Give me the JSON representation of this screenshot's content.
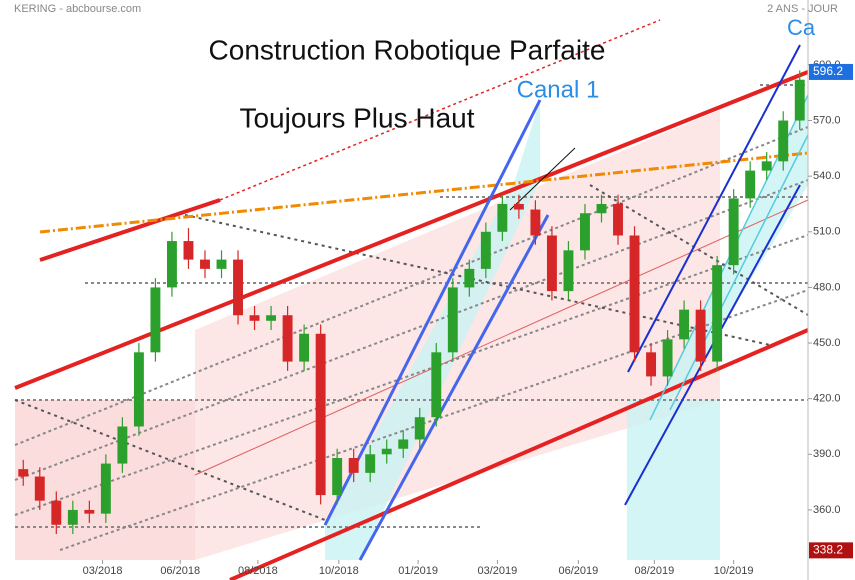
{
  "chart_data": {
    "type": "candlestick",
    "header_left": "KERING - abcbourse.com",
    "header_right": "2 ANS - JOUR",
    "annotations": [
      "Construction Robotique Parfaite",
      "Toujours Plus  Haut",
      "Canal 1",
      "Ca"
    ],
    "up_color": "#2ca02c",
    "down_color": "#d62728",
    "xlim": [
      0,
      48
    ],
    "xticks": [
      {
        "value": 5.3,
        "label": "03/2018"
      },
      {
        "value": 10.0,
        "label": "06/2018"
      },
      {
        "value": 14.7,
        "label": "08/2018"
      },
      {
        "value": 19.6,
        "label": "10/2018"
      },
      {
        "value": 24.4,
        "label": "01/2019"
      },
      {
        "value": 29.2,
        "label": "03/2019"
      },
      {
        "value": 34.1,
        "label": "06/2019"
      },
      {
        "value": 38.7,
        "label": "08/2019"
      },
      {
        "value": 43.5,
        "label": "10/2019"
      }
    ],
    "ylim": [
      333,
      635
    ],
    "yticks": [
      {
        "value": 360,
        "label": "360.0"
      },
      {
        "value": 390,
        "label": "390.0"
      },
      {
        "value": 420,
        "label": "420.0"
      },
      {
        "value": 450,
        "label": "450.0"
      },
      {
        "value": 480,
        "label": "480.0"
      },
      {
        "value": 510,
        "label": "510.0"
      },
      {
        "value": 540,
        "label": "540.0"
      },
      {
        "value": 570,
        "label": "570.0"
      },
      {
        "value": 600,
        "label": "600.0"
      }
    ],
    "price_tags": [
      {
        "value": 596.2,
        "label": "596.2",
        "color": "#1e6fe0"
      },
      {
        "value": 338.2,
        "label": "338.2",
        "color": "#b01010"
      }
    ],
    "open": [
      382,
      378,
      365,
      352,
      360,
      358,
      385,
      405,
      445,
      480,
      505,
      495,
      490,
      495,
      465,
      462,
      465,
      440,
      455,
      368,
      388,
      380,
      390,
      393,
      398,
      410,
      445,
      480,
      490,
      510,
      525,
      522,
      508,
      478,
      500,
      520,
      525,
      508,
      445,
      432,
      452,
      468,
      440,
      492,
      528,
      543,
      548,
      570
    ],
    "high": [
      387,
      383,
      370,
      365,
      365,
      390,
      410,
      450,
      485,
      510,
      512,
      500,
      500,
      500,
      470,
      470,
      470,
      460,
      460,
      393,
      393,
      395,
      398,
      403,
      415,
      450,
      485,
      495,
      515,
      530,
      530,
      527,
      513,
      505,
      525,
      530,
      530,
      513,
      450,
      457,
      473,
      473,
      497,
      533,
      548,
      553,
      575,
      597
    ],
    "low": [
      373,
      360,
      347,
      347,
      353,
      353,
      380,
      400,
      440,
      475,
      490,
      485,
      485,
      460,
      457,
      457,
      435,
      435,
      363,
      363,
      375,
      375,
      385,
      388,
      393,
      405,
      440,
      475,
      485,
      505,
      517,
      503,
      473,
      473,
      495,
      515,
      503,
      440,
      427,
      427,
      447,
      435,
      435,
      487,
      523,
      538,
      543,
      565
    ],
    "close": [
      378,
      365,
      352,
      360,
      358,
      385,
      405,
      445,
      480,
      505,
      495,
      490,
      495,
      465,
      462,
      465,
      440,
      455,
      368,
      388,
      380,
      390,
      393,
      398,
      410,
      445,
      480,
      490,
      510,
      525,
      522,
      508,
      478,
      500,
      520,
      525,
      508,
      445,
      432,
      452,
      468,
      440,
      492,
      528,
      543,
      548,
      570,
      592
    ]
  }
}
